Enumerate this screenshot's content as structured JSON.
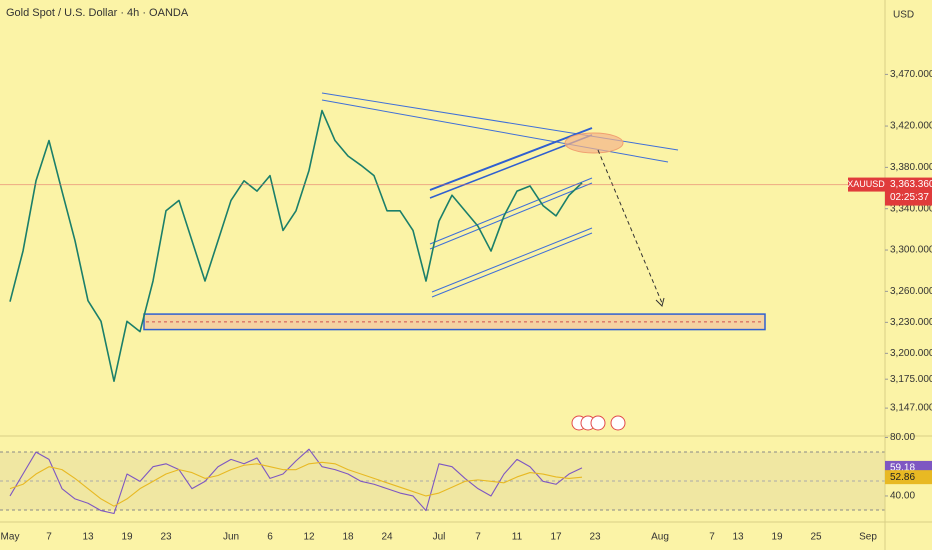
{
  "chart_data": [
    {
      "type": "line",
      "title": "Gold Spot / U.S. Dollar · 4h · OANDA",
      "currency": "USD",
      "categories": [
        "May",
        null,
        null,
        "7",
        null,
        null,
        "13",
        null,
        null,
        "19",
        null,
        null,
        "23",
        null,
        null,
        null,
        null,
        "Jun",
        null,
        null,
        "6",
        null,
        null,
        "12",
        null,
        null,
        "18",
        null,
        null,
        "24",
        null,
        null,
        null,
        "Jul",
        null,
        null,
        "7",
        null,
        null,
        "11",
        null,
        null,
        "17",
        null,
        null,
        "23",
        null,
        null,
        null,
        null,
        "Aug",
        null,
        null,
        null,
        "7",
        null,
        "13",
        null,
        null,
        "19",
        null,
        null,
        "25",
        null,
        null,
        null,
        "Sep"
      ],
      "series": [
        {
          "name": "XAUUSD",
          "color": "#1b7f6a",
          "values": [
            3250,
            3299,
            3367,
            3406,
            3357,
            3309,
            3251,
            3231,
            3173,
            3231,
            3221,
            3270,
            3338,
            3348,
            3309,
            3270,
            3309,
            3348,
            3367,
            3357,
            3372,
            3319,
            3338,
            3377,
            3435,
            3406,
            3391,
            3382,
            3372,
            3338,
            3338,
            3319,
            3270,
            3328,
            3353,
            3338,
            3323,
            3299,
            3333,
            3357,
            3362,
            3343,
            3333,
            3353,
            3365,
            null,
            null,
            null,
            null,
            null,
            null,
            null,
            null,
            null,
            null,
            null,
            null,
            null,
            null,
            null,
            null,
            null,
            null,
            null,
            null,
            null,
            null
          ]
        }
      ],
      "last_price": {
        "value": 3363.36,
        "label": "3,363.360"
      },
      "countdown": "02:25:37",
      "support_zone": [
        3223,
        3238
      ],
      "ylim": [
        3120,
        3542
      ],
      "yticks": [
        {
          "value": 3470,
          "label": "3,470.000"
        },
        {
          "value": 3420,
          "label": "3,420.000"
        },
        {
          "value": 3380,
          "label": "3,380.000"
        },
        {
          "value": 3340,
          "label": "3,340.000"
        },
        {
          "value": 3300,
          "label": "3,300.000"
        },
        {
          "value": 3260,
          "label": "3,260.000"
        },
        {
          "value": 3230,
          "label": "3,230.000"
        },
        {
          "value": 3200,
          "label": "3,200.000"
        },
        {
          "value": 3175,
          "label": "3,175.000"
        },
        {
          "value": 3147,
          "label": "3,147.000"
        }
      ]
    },
    {
      "type": "line",
      "series": [
        {
          "color": "#7e57c2",
          "values": [
            40,
            55,
            70,
            65,
            45,
            38,
            35,
            30,
            28,
            55,
            50,
            60,
            62,
            58,
            45,
            50,
            60,
            65,
            62,
            66,
            52,
            55,
            64,
            72,
            60,
            58,
            55,
            50,
            48,
            45,
            42,
            40,
            30,
            62,
            60,
            52,
            45,
            40,
            55,
            65,
            60,
            50,
            48,
            55,
            59.18,
            null,
            null,
            null,
            null,
            null,
            null,
            null,
            null,
            null,
            null,
            null,
            null,
            null,
            null,
            null,
            null,
            null,
            null,
            null,
            null,
            null,
            null
          ]
        },
        {
          "color": "#e8b923",
          "values": [
            45,
            48,
            55,
            60,
            58,
            52,
            45,
            38,
            33,
            38,
            45,
            50,
            55,
            58,
            56,
            52,
            54,
            58,
            61,
            62,
            60,
            58,
            58,
            62,
            63,
            62,
            58,
            55,
            52,
            49,
            46,
            43,
            40,
            42,
            46,
            50,
            51,
            50,
            49,
            53,
            56,
            55,
            53,
            52,
            52.86,
            null,
            null,
            null,
            null,
            null,
            null,
            null,
            null,
            null,
            null,
            null,
            null,
            null,
            null,
            null,
            null,
            null,
            null,
            null,
            null,
            null,
            null
          ]
        }
      ],
      "ylim": [
        22.2,
        81
      ],
      "yticks": [
        {
          "value": 80,
          "label": "80.00"
        },
        {
          "value": 40,
          "label": "40.00"
        }
      ]
    }
  ]
}
